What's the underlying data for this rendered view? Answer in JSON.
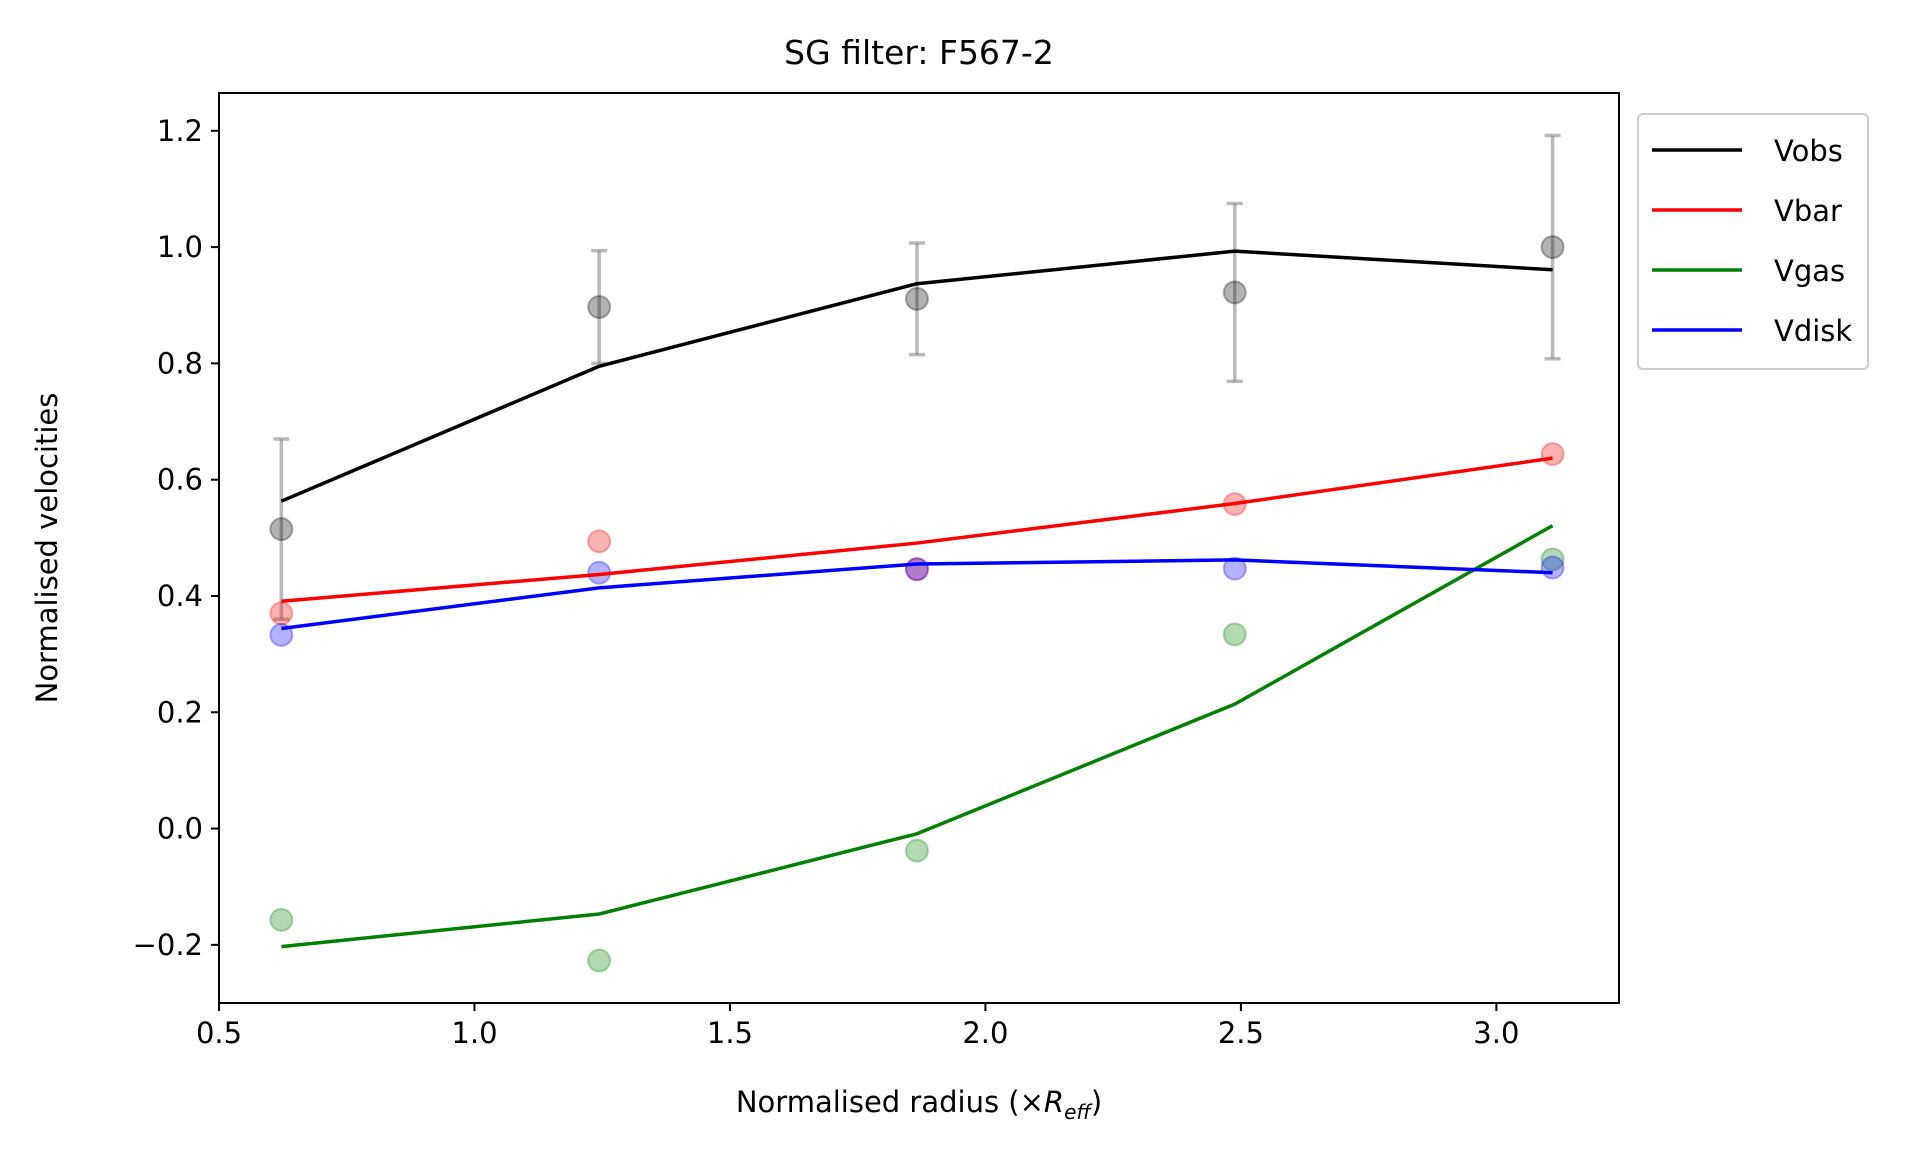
{
  "chart_data": {
    "type": "line",
    "title": "SG filter: F567-2",
    "xlabel_main": "Normalised radius (×",
    "xlabel_math_base": "R",
    "xlabel_math_sub": "eff",
    "xlabel_close": ")",
    "ylabel": "Normalised velocities",
    "xlim": [
      0.5,
      3.24
    ],
    "ylim": [
      -0.3,
      1.265
    ],
    "xticks": [
      0.5,
      1.0,
      1.5,
      2.0,
      2.5,
      3.0
    ],
    "xtick_labels": [
      "0.5",
      "1.0",
      "1.5",
      "2.0",
      "2.5",
      "3.0"
    ],
    "yticks": [
      -0.2,
      0.0,
      0.2,
      0.4,
      0.6,
      0.8,
      1.0,
      1.2
    ],
    "ytick_labels": [
      "−0.2",
      "0.0",
      "0.2",
      "0.4",
      "0.6",
      "0.8",
      "1.0",
      "1.2"
    ],
    "grid": false,
    "legend_position": "outside top-right",
    "x": [
      0.622,
      1.244,
      1.866,
      2.488,
      3.11
    ],
    "series": [
      {
        "name": "Vobs",
        "color": "#000000",
        "line": [
          0.563,
          0.795,
          0.937,
          0.993,
          0.961
        ],
        "points": [
          0.515,
          0.897,
          0.911,
          0.922,
          1.0
        ],
        "error": [
          0.155,
          0.097,
          0.096,
          0.153,
          0.192
        ]
      },
      {
        "name": "Vbar",
        "color": "#ff0000",
        "line": [
          0.391,
          0.437,
          0.491,
          0.559,
          0.637
        ],
        "points": [
          0.37,
          0.494,
          0.446,
          0.558,
          0.644
        ]
      },
      {
        "name": "Vgas",
        "color": "#008000",
        "line": [
          -0.203,
          -0.147,
          -0.009,
          0.214,
          0.521
        ],
        "points": [
          -0.157,
          -0.227,
          -0.038,
          0.334,
          0.463
        ]
      },
      {
        "name": "Vdisk",
        "color": "#0000ff",
        "line": [
          0.344,
          0.414,
          0.455,
          0.462,
          0.44
        ],
        "points": [
          0.333,
          0.44,
          0.446,
          0.447,
          0.449
        ]
      }
    ]
  }
}
